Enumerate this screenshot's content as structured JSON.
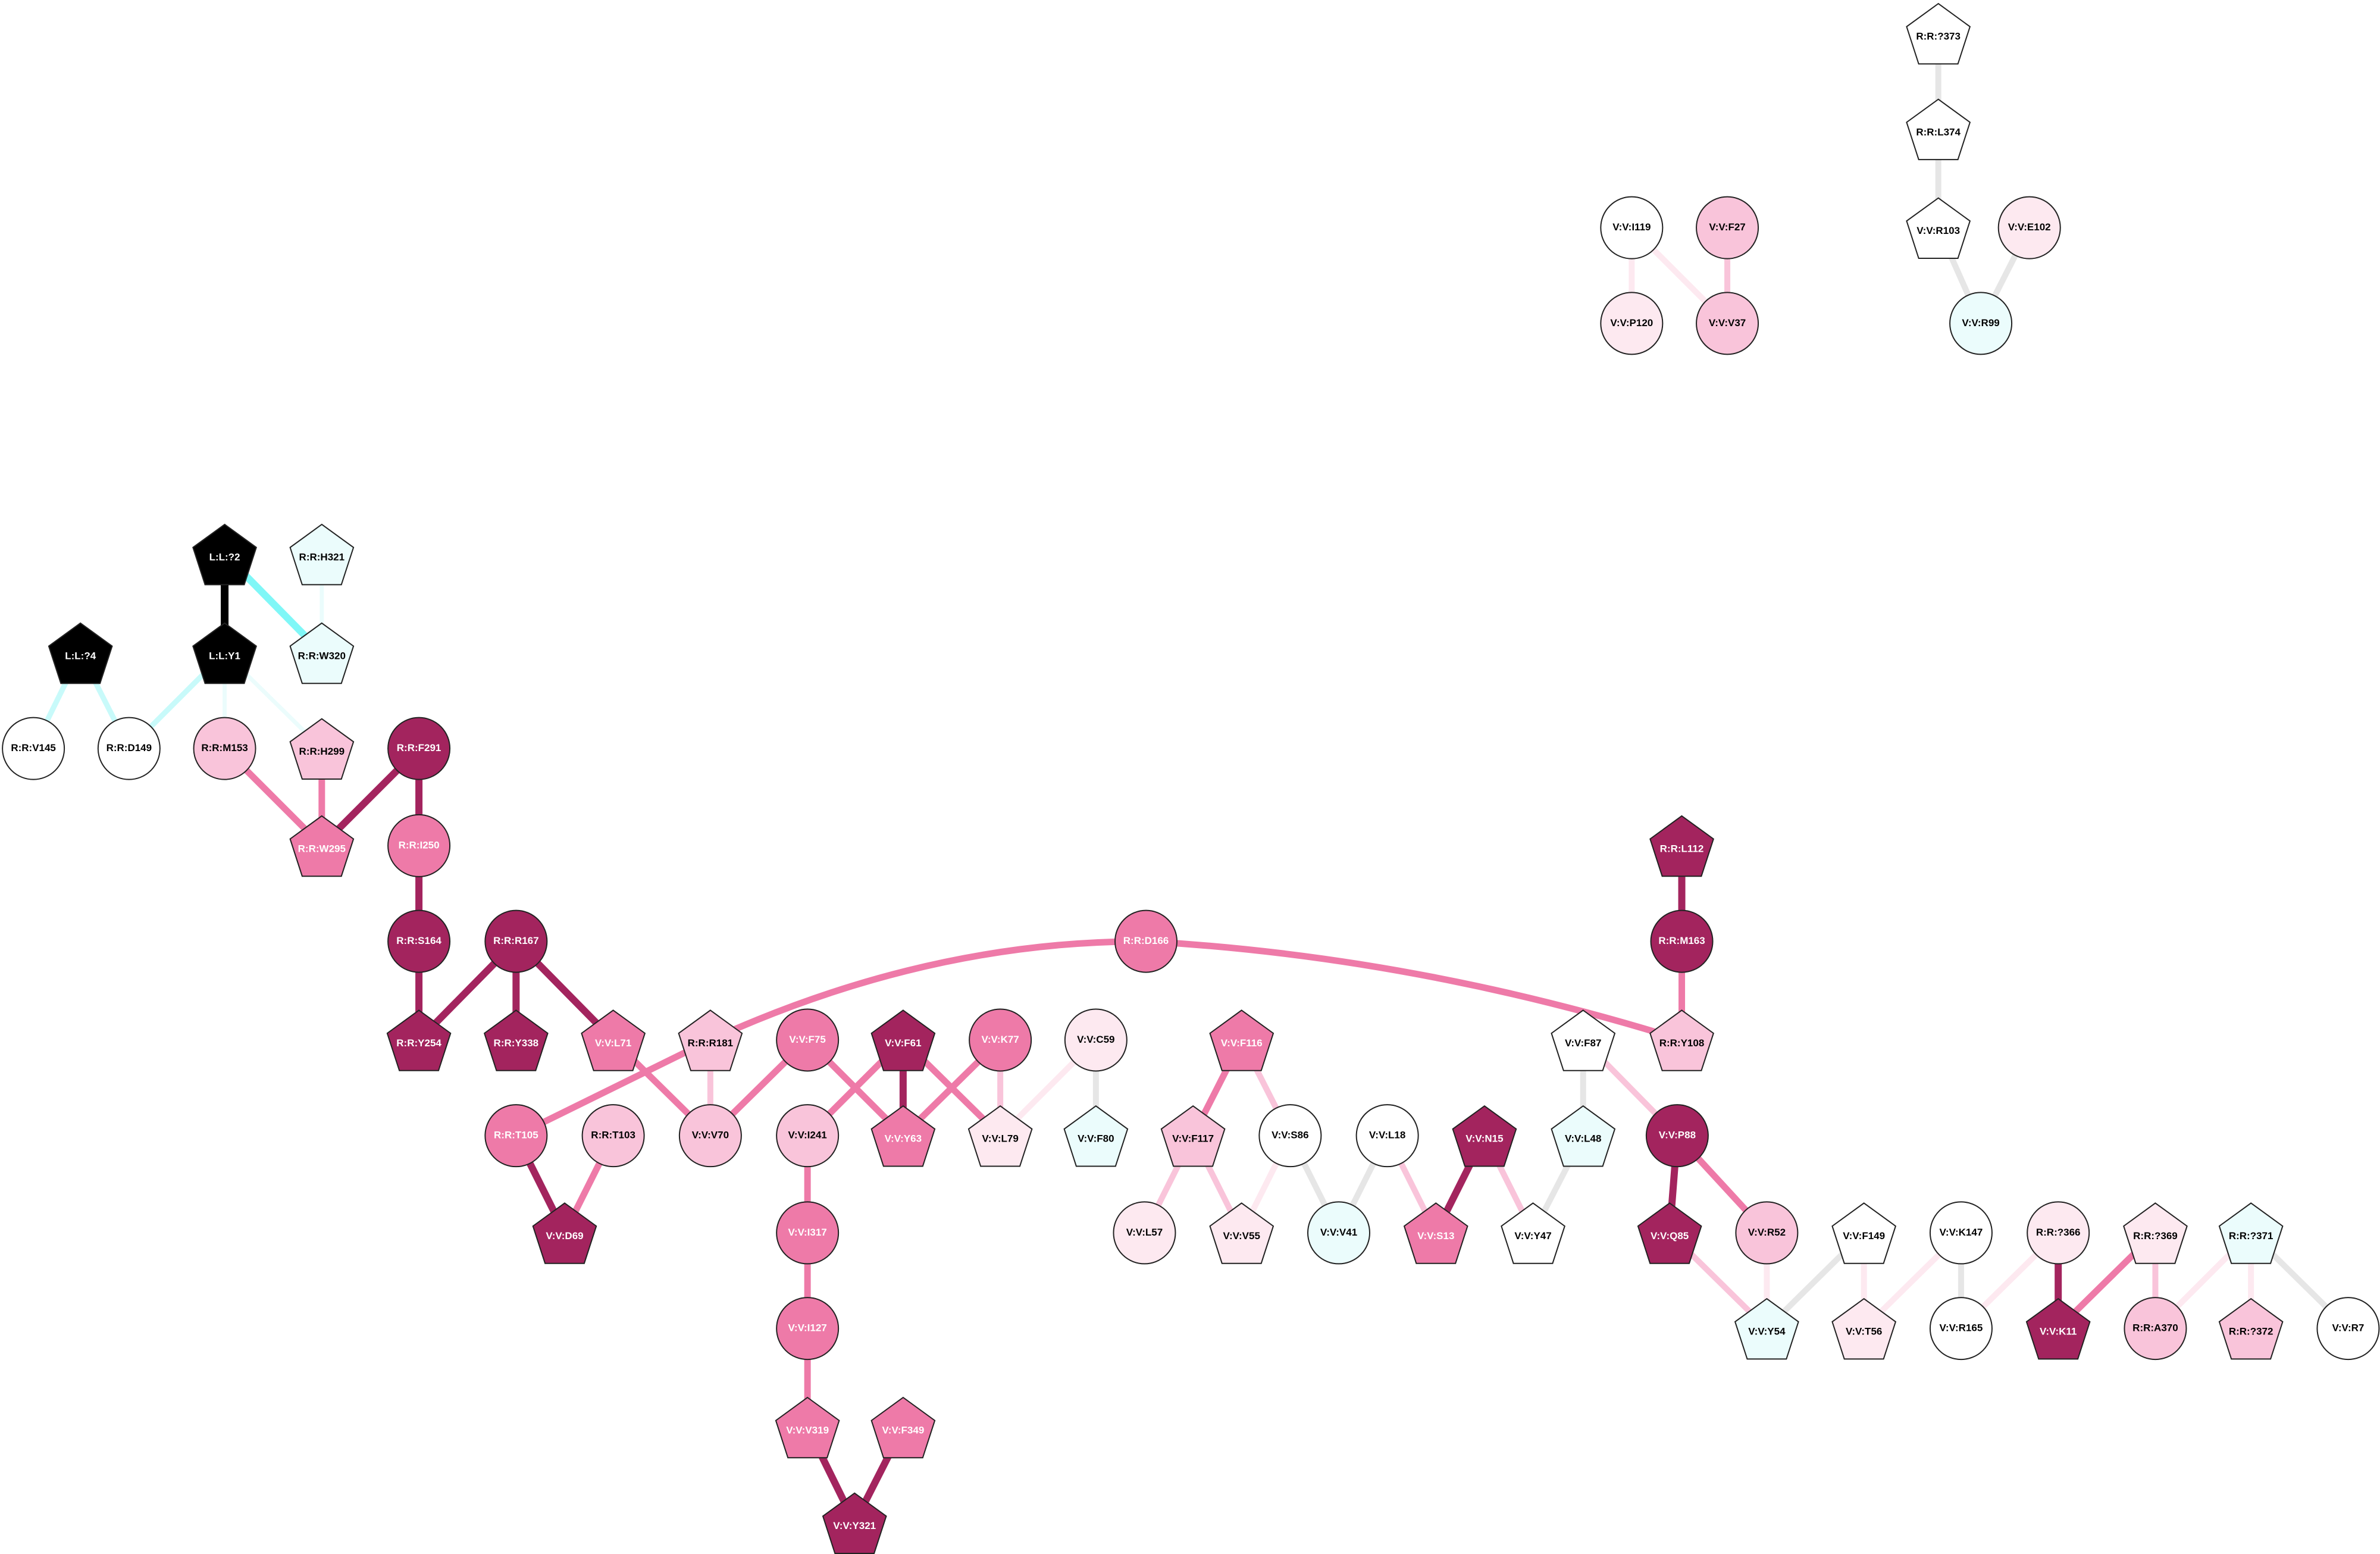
{
  "nodes": [
    {
      "label": "R:R:?373"
    },
    {
      "label": "R:R:L374"
    },
    {
      "label": "V:V:R103"
    },
    {
      "label": "V:V:E102"
    },
    {
      "label": "V:V:R99"
    },
    {
      "label": "V:V:I119"
    },
    {
      "label": "V:V:F27"
    },
    {
      "label": "V:V:P120"
    },
    {
      "label": "V:V:V37"
    },
    {
      "label": "L:L:?2"
    },
    {
      "label": "R:R:H321"
    },
    {
      "label": "L:L:?4"
    },
    {
      "label": "L:L:Y1"
    },
    {
      "label": "R:R:W320"
    },
    {
      "label": "R:R:V145"
    },
    {
      "label": "R:R:D149"
    },
    {
      "label": "R:R:M153"
    },
    {
      "label": "R:R:H299"
    },
    {
      "label": "R:R:F291"
    },
    {
      "label": "R:R:W295"
    },
    {
      "label": "R:R:I250"
    },
    {
      "label": "R:R:S164"
    },
    {
      "label": "R:R:R167"
    },
    {
      "label": "R:R:Y254"
    },
    {
      "label": "R:R:Y338"
    },
    {
      "label": "V:V:L71"
    },
    {
      "label": "R:R:R181"
    },
    {
      "label": "R:R:D166"
    },
    {
      "label": "R:R:L112"
    },
    {
      "label": "R:R:M163"
    },
    {
      "label": "R:R:Y108"
    },
    {
      "label": "V:V:F75"
    },
    {
      "label": "V:V:F61"
    },
    {
      "label": "V:V:K77"
    },
    {
      "label": "V:V:C59"
    },
    {
      "label": "V:V:F116"
    },
    {
      "label": "V:V:F87"
    },
    {
      "label": "R:R:T105"
    },
    {
      "label": "R:R:T103"
    },
    {
      "label": "V:V:V70"
    },
    {
      "label": "V:V:I241"
    },
    {
      "label": "V:V:Y63"
    },
    {
      "label": "V:V:L79"
    },
    {
      "label": "V:V:F80"
    },
    {
      "label": "V:V:F117"
    },
    {
      "label": "V:V:S86"
    },
    {
      "label": "V:V:L18"
    },
    {
      "label": "V:V:N15"
    },
    {
      "label": "V:V:L48"
    },
    {
      "label": "V:V:P88"
    },
    {
      "label": "V:V:D69"
    },
    {
      "label": "V:V:I317"
    },
    {
      "label": "V:V:L57"
    },
    {
      "label": "V:V:V55"
    },
    {
      "label": "V:V:V41"
    },
    {
      "label": "V:V:S13"
    },
    {
      "label": "V:V:Y47"
    },
    {
      "label": "V:V:Q85"
    },
    {
      "label": "V:V:R52"
    },
    {
      "label": "V:V:F149"
    },
    {
      "label": "V:V:K147"
    },
    {
      "label": "R:R:?366"
    },
    {
      "label": "R:R:?369"
    },
    {
      "label": "R:R:?371"
    },
    {
      "label": "V:V:I127"
    },
    {
      "label": "V:V:Y54"
    },
    {
      "label": "V:V:T56"
    },
    {
      "label": "V:V:R165"
    },
    {
      "label": "V:V:K11"
    },
    {
      "label": "R:R:A370"
    },
    {
      "label": "R:R:?372"
    },
    {
      "label": "V:V:R7"
    },
    {
      "label": "V:V:V319"
    },
    {
      "label": "V:V:F349"
    },
    {
      "label": "V:V:Y321"
    }
  ]
}
